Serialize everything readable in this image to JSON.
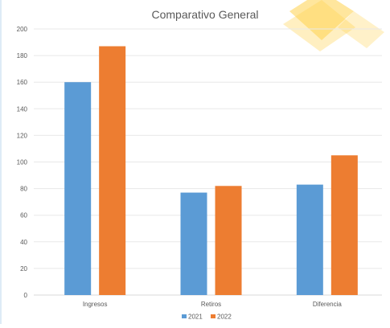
{
  "chart_data": {
    "type": "bar",
    "title": "Comparativo General",
    "categories": [
      "Ingresos",
      "Retiros",
      "Diferencia"
    ],
    "series": [
      {
        "name": "2021",
        "color": "#5b9bd5",
        "values": [
          160,
          77,
          83
        ]
      },
      {
        "name": "2022",
        "color": "#ed7d31",
        "values": [
          187,
          82,
          105
        ]
      }
    ],
    "ylim": [
      0,
      200
    ],
    "yticks": [
      0,
      20,
      40,
      60,
      80,
      100,
      120,
      140,
      160,
      180,
      200
    ],
    "xlabel": "",
    "ylabel": "",
    "grid": true,
    "legend_position": "bottom",
    "decoration_color": "#ffd24d"
  }
}
